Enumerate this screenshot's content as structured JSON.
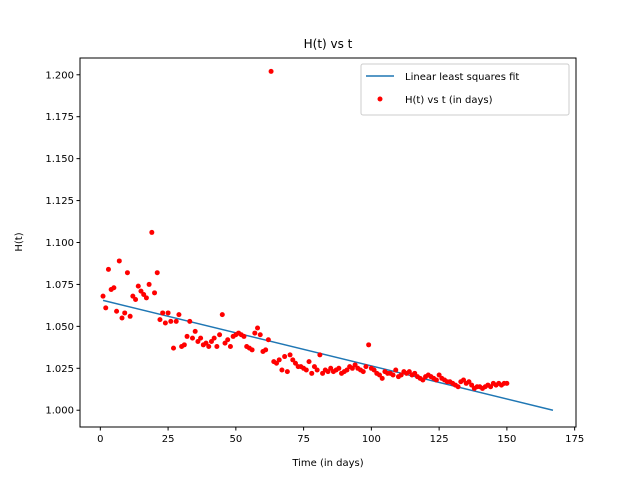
{
  "chart_data": {
    "type": "scatter",
    "title": "H(t) vs t",
    "xlabel": "Time (in days)",
    "ylabel": "H(t)",
    "xlim": [
      -7.5,
      175.5
    ],
    "ylim": [
      0.99,
      1.21
    ],
    "xticks": [
      0,
      25,
      50,
      75,
      100,
      125,
      150,
      175
    ],
    "yticks": [
      1.0,
      1.025,
      1.05,
      1.075,
      1.1,
      1.125,
      1.15,
      1.175,
      1.2
    ],
    "grid": false,
    "legend_position": "upper-right",
    "series": [
      {
        "name": "Linear least squares fit",
        "kind": "line",
        "color": "#1f77b4",
        "x": [
          1,
          167
        ],
        "y": [
          1.0655,
          1.0
        ]
      },
      {
        "name": "H(t) vs t (in days)",
        "kind": "scatter",
        "color": "#ff0000",
        "x": [
          1,
          2,
          3,
          4,
          5,
          6,
          7,
          8,
          9,
          10,
          11,
          12,
          13,
          14,
          15,
          16,
          17,
          18,
          19,
          20,
          21,
          22,
          23,
          24,
          25,
          26,
          27,
          28,
          29,
          30,
          31,
          32,
          33,
          34,
          35,
          36,
          37,
          38,
          39,
          40,
          41,
          42,
          43,
          44,
          45,
          46,
          47,
          48,
          49,
          50,
          51,
          52,
          53,
          54,
          55,
          56,
          57,
          58,
          59,
          60,
          61,
          62,
          63,
          64,
          65,
          66,
          67,
          68,
          69,
          70,
          71,
          72,
          73,
          74,
          75,
          76,
          77,
          78,
          79,
          80,
          81,
          82,
          83,
          84,
          85,
          86,
          87,
          88,
          89,
          90,
          91,
          92,
          93,
          94,
          95,
          96,
          97,
          98,
          99,
          100,
          101,
          102,
          103,
          104,
          105,
          106,
          107,
          108,
          109,
          110,
          111,
          112,
          113,
          114,
          115,
          116,
          117,
          118,
          119,
          120,
          121,
          122,
          123,
          124,
          125,
          126,
          127,
          128,
          129,
          130,
          131,
          132,
          133,
          134,
          135,
          136,
          137,
          138,
          139,
          140,
          141,
          142,
          143,
          144,
          145,
          146,
          147,
          148,
          149,
          150
        ],
        "y": [
          1.068,
          1.061,
          1.084,
          1.072,
          1.073,
          1.059,
          1.089,
          1.055,
          1.058,
          1.082,
          1.056,
          1.068,
          1.066,
          1.074,
          1.071,
          1.069,
          1.067,
          1.075,
          1.106,
          1.07,
          1.082,
          1.054,
          1.058,
          1.052,
          1.058,
          1.053,
          1.037,
          1.053,
          1.057,
          1.038,
          1.039,
          1.044,
          1.053,
          1.043,
          1.047,
          1.041,
          1.043,
          1.039,
          1.04,
          1.038,
          1.041,
          1.043,
          1.038,
          1.045,
          1.057,
          1.04,
          1.042,
          1.038,
          1.044,
          1.045,
          1.046,
          1.045,
          1.044,
          1.038,
          1.037,
          1.036,
          1.046,
          1.049,
          1.045,
          1.035,
          1.036,
          1.042,
          1.202,
          1.029,
          1.028,
          1.03,
          1.024,
          1.032,
          1.023,
          1.033,
          1.03,
          1.028,
          1.026,
          1.026,
          1.025,
          1.024,
          1.029,
          1.022,
          1.026,
          1.024,
          1.033,
          1.022,
          1.024,
          1.023,
          1.025,
          1.023,
          1.024,
          1.025,
          1.022,
          1.023,
          1.024,
          1.026,
          1.025,
          1.027,
          1.025,
          1.024,
          1.023,
          1.026,
          1.039,
          1.025,
          1.024,
          1.022,
          1.021,
          1.019,
          1.023,
          1.022,
          1.022,
          1.021,
          1.024,
          1.02,
          1.021,
          1.023,
          1.022,
          1.023,
          1.021,
          1.022,
          1.02,
          1.019,
          1.018,
          1.02,
          1.021,
          1.02,
          1.019,
          1.018,
          1.021,
          1.019,
          1.018,
          1.017,
          1.017,
          1.016,
          1.015,
          1.014,
          1.017,
          1.018,
          1.016,
          1.017,
          1.015,
          1.013,
          1.014,
          1.014,
          1.013,
          1.014,
          1.015,
          1.014,
          1.016,
          1.015,
          1.016,
          1.015,
          1.016,
          1.016
        ]
      }
    ]
  },
  "colors": {
    "fit_line": "#1f77b4",
    "points": "#ff0000",
    "legend_border": "#cccccc"
  }
}
